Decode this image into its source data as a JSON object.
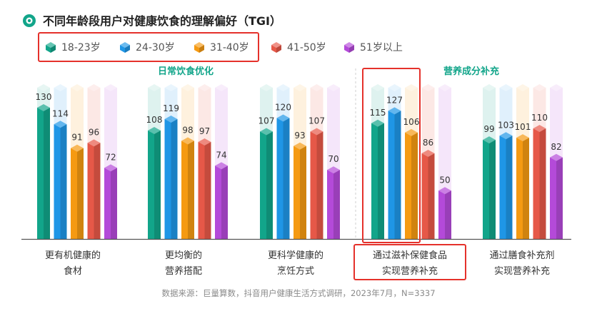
{
  "title": "不同年龄段用户对健康饮食的理解偏好（TGI）",
  "source": "数据来源：巨量算数，抖音用户健康生活方式调研，2023年7月，N=3337",
  "groups": [
    "日常饮食优化",
    "营养成分补充"
  ],
  "colors": {
    "accent": "#12a58a",
    "highlight": "#e5312b",
    "axis": "#555555",
    "divider": "#cfcfcf"
  },
  "chart_data": {
    "type": "bar",
    "title": "不同年龄段用户对健康饮食的理解偏好（TGI）",
    "categories": [
      [
        "更有机健康的",
        "食材"
      ],
      [
        "更均衡的",
        "营养搭配"
      ],
      [
        "更科学健康的",
        "烹饪方式"
      ],
      [
        "通过滋补保健食品",
        "实现营养补充"
      ],
      [
        "通过膳食补充剂",
        "实现营养补充"
      ]
    ],
    "series": [
      {
        "name": "18-23岁",
        "color": "#12a58a",
        "values": [
          130,
          108,
          107,
          115,
          99
        ]
      },
      {
        "name": "24-30岁",
        "color": "#1f96e6",
        "values": [
          114,
          119,
          120,
          127,
          103
        ]
      },
      {
        "name": "31-40岁",
        "color": "#f59a12",
        "values": [
          91,
          98,
          93,
          106,
          101
        ]
      },
      {
        "name": "41-50岁",
        "color": "#e65848",
        "values": [
          96,
          97,
          107,
          86,
          110
        ]
      },
      {
        "name": "51岁以上",
        "color": "#b44ad9",
        "values": [
          72,
          74,
          70,
          50,
          82
        ]
      }
    ],
    "ylim": [
      0,
      150
    ],
    "legend": "top-left",
    "grid": false,
    "highlighted_category": "通过滋补保健食品实现营养补充"
  }
}
